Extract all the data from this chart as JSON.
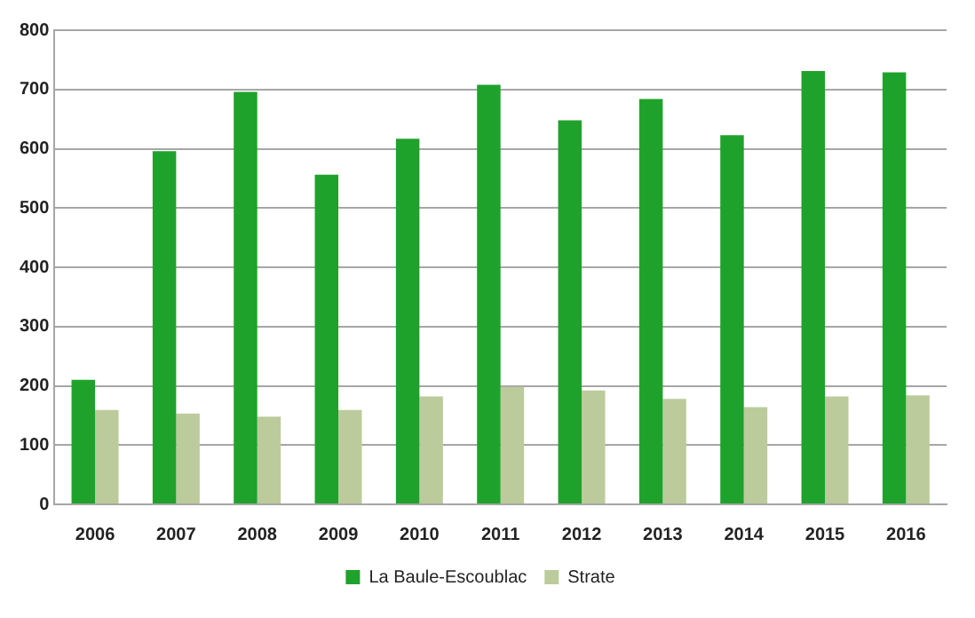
{
  "chart_data": {
    "type": "bar",
    "categories": [
      "2006",
      "2007",
      "2008",
      "2009",
      "2010",
      "2011",
      "2012",
      "2013",
      "2014",
      "2015",
      "2016"
    ],
    "series": [
      {
        "name": "La Baule-Escoublac",
        "color": "#1fa22b",
        "values": [
          210,
          596,
          696,
          556,
          617,
          708,
          648,
          684,
          623,
          731,
          729
        ]
      },
      {
        "name": "Strate",
        "color": "#bccb9b",
        "values": [
          159,
          153,
          148,
          159,
          182,
          198,
          192,
          178,
          164,
          182,
          184
        ]
      }
    ],
    "ylim": [
      0,
      800
    ],
    "yticks": [
      0,
      100,
      200,
      300,
      400,
      500,
      600,
      700,
      800
    ],
    "grid": "y",
    "legend": "bottom"
  }
}
